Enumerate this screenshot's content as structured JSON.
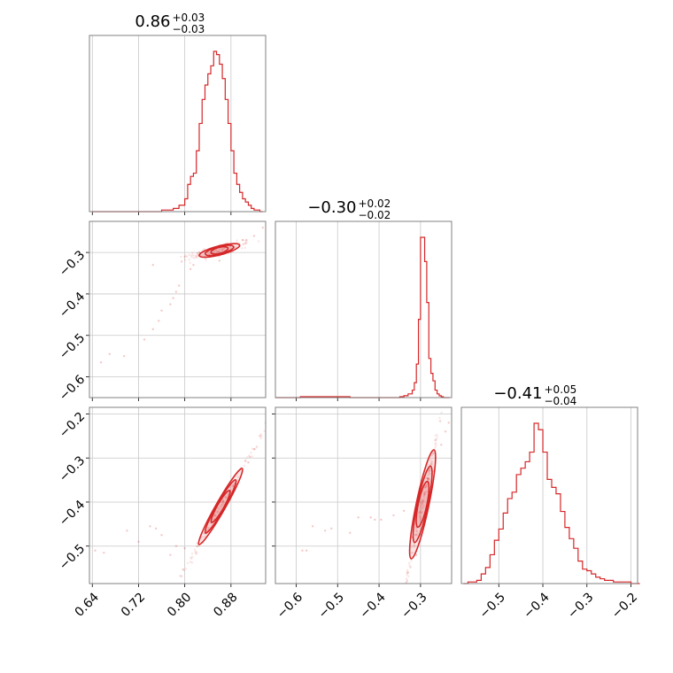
{
  "chart_data": {
    "type": "corner",
    "color": "#d62728",
    "grid": true,
    "parameters": [
      {
        "range": [
          0.635,
          0.94
        ],
        "ticks": [
          0.64,
          0.72,
          0.8,
          0.88
        ],
        "tick_labels": [
          "0.64",
          "0.72",
          "0.80",
          "0.88"
        ],
        "title": {
          "median": "0.86",
          "plus": "+0.03",
          "minus": "−0.03"
        }
      },
      {
        "range": [
          -0.65,
          -0.225
        ],
        "ticks": [
          -0.6,
          -0.5,
          -0.4,
          -0.3
        ],
        "tick_labels": [
          "−0.6",
          "−0.5",
          "−0.4",
          "−0.3"
        ],
        "title": {
          "median": "−0.30",
          "plus": "+0.02",
          "minus": "−0.02"
        }
      },
      {
        "range": [
          -0.585,
          -0.185
        ],
        "ticks": [
          -0.5,
          -0.4,
          -0.3,
          -0.2
        ],
        "tick_labels": [
          "−0.5",
          "−0.4",
          "−0.3",
          "−0.2"
        ],
        "title": {
          "median": "−0.41",
          "plus": "+0.05",
          "minus": "−0.04"
        }
      }
    ],
    "histograms": [
      {
        "parameter": 0,
        "x": [
          0.64,
          0.65,
          0.66,
          0.67,
          0.68,
          0.69,
          0.7,
          0.71,
          0.72,
          0.73,
          0.74,
          0.75,
          0.76,
          0.77,
          0.78,
          0.79,
          0.8,
          0.805,
          0.81,
          0.815,
          0.82,
          0.825,
          0.83,
          0.835,
          0.84,
          0.845,
          0.85,
          0.855,
          0.86,
          0.865,
          0.87,
          0.875,
          0.88,
          0.885,
          0.89,
          0.895,
          0.9,
          0.905,
          0.91,
          0.915,
          0.92,
          0.925,
          0.93
        ],
        "density": [
          0,
          0,
          0,
          0,
          0,
          0,
          0,
          0,
          0,
          0,
          0,
          0,
          0.01,
          0.01,
          0.02,
          0.04,
          0.08,
          0.17,
          0.22,
          0.24,
          0.38,
          0.55,
          0.7,
          0.79,
          0.86,
          0.91,
          1.0,
          0.98,
          0.92,
          0.83,
          0.7,
          0.55,
          0.38,
          0.24,
          0.17,
          0.12,
          0.08,
          0.06,
          0.04,
          0.02,
          0.01,
          0.01,
          0
        ]
      },
      {
        "parameter": 1,
        "x": [
          -0.65,
          -0.62,
          -0.59,
          -0.56,
          -0.53,
          -0.5,
          -0.47,
          -0.44,
          -0.41,
          -0.38,
          -0.35,
          -0.34,
          -0.33,
          -0.32,
          -0.315,
          -0.31,
          -0.305,
          -0.3,
          -0.295,
          -0.29,
          -0.285,
          -0.28,
          -0.275,
          -0.27,
          -0.265,
          -0.26,
          -0.255,
          -0.25,
          -0.245,
          -0.24,
          -0.235
        ],
        "density": [
          0,
          0,
          0.005,
          0.005,
          0.005,
          0.005,
          0,
          0,
          0,
          0,
          0.005,
          0.01,
          0.02,
          0.04,
          0.08,
          0.18,
          0.42,
          0.86,
          0.86,
          0.73,
          0.51,
          0.21,
          0.13,
          0.09,
          0.04,
          0.02,
          0.01,
          0.005,
          0,
          0,
          0
        ]
      },
      {
        "parameter": 2,
        "x": [
          -0.58,
          -0.57,
          -0.56,
          -0.55,
          -0.54,
          -0.53,
          -0.52,
          -0.51,
          -0.5,
          -0.49,
          -0.48,
          -0.47,
          -0.46,
          -0.45,
          -0.44,
          -0.43,
          -0.42,
          -0.41,
          -0.4,
          -0.39,
          -0.38,
          -0.37,
          -0.36,
          -0.35,
          -0.34,
          -0.33,
          -0.32,
          -0.31,
          -0.3,
          -0.29,
          -0.28,
          -0.27,
          -0.26,
          -0.25,
          -0.24,
          -0.23,
          -0.22,
          -0.21,
          -0.2,
          -0.19
        ],
        "density": [
          0,
          0.01,
          0.01,
          0.02,
          0.06,
          0.1,
          0.18,
          0.27,
          0.34,
          0.44,
          0.53,
          0.57,
          0.68,
          0.72,
          0.76,
          0.82,
          1.0,
          0.96,
          0.82,
          0.65,
          0.6,
          0.56,
          0.45,
          0.35,
          0.28,
          0.22,
          0.14,
          0.09,
          0.08,
          0.06,
          0.04,
          0.03,
          0.02,
          0.02,
          0.01,
          0.01,
          0.01,
          0.01,
          0,
          0
        ]
      }
    ],
    "scatter": [
      {
        "x_param": 0,
        "y_param": 1,
        "points": [
          [
            0.655,
            -0.565
          ],
          [
            0.67,
            -0.545
          ],
          [
            0.695,
            -0.55
          ],
          [
            0.73,
            -0.51
          ],
          [
            0.745,
            -0.485
          ],
          [
            0.755,
            -0.465
          ],
          [
            0.76,
            -0.44
          ],
          [
            0.775,
            -0.425
          ],
          [
            0.78,
            -0.41
          ],
          [
            0.785,
            -0.395
          ],
          [
            0.79,
            -0.38
          ],
          [
            0.745,
            -0.33
          ],
          [
            0.81,
            -0.34
          ],
          [
            0.8,
            -0.31
          ],
          [
            0.815,
            -0.33
          ],
          [
            0.86,
            -0.32
          ],
          [
            0.9,
            -0.27
          ],
          [
            0.92,
            -0.26
          ],
          [
            0.935,
            -0.24
          ]
        ],
        "contour_center": [
          0.86,
          -0.295
        ],
        "contour_slope": 0.36,
        "contour_spread": [
          0.07,
          0.006
        ]
      },
      {
        "x_param": 0,
        "y_param": 2,
        "points": [
          [
            0.645,
            -0.51
          ],
          [
            0.66,
            -0.515
          ],
          [
            0.7,
            -0.465
          ],
          [
            0.72,
            -0.49
          ],
          [
            0.74,
            -0.455
          ],
          [
            0.75,
            -0.46
          ],
          [
            0.76,
            -0.475
          ],
          [
            0.775,
            -0.52
          ],
          [
            0.785,
            -0.5
          ],
          [
            0.8,
            -0.505
          ],
          [
            0.91,
            -0.31
          ],
          [
            0.92,
            -0.28
          ],
          [
            0.93,
            -0.25
          ],
          [
            0.94,
            -0.22
          ]
        ],
        "contour_center": [
          0.862,
          -0.41
        ],
        "contour_slope": 2.3,
        "contour_spread": [
          0.075,
          0.006
        ]
      },
      {
        "x_param": 1,
        "y_param": 2,
        "points": [
          [
            -0.585,
            -0.51
          ],
          [
            -0.575,
            -0.51
          ],
          [
            -0.56,
            -0.455
          ],
          [
            -0.53,
            -0.465
          ],
          [
            -0.515,
            -0.46
          ],
          [
            -0.47,
            -0.47
          ],
          [
            -0.45,
            -0.435
          ],
          [
            -0.42,
            -0.435
          ],
          [
            -0.41,
            -0.44
          ],
          [
            -0.395,
            -0.44
          ],
          [
            -0.365,
            -0.43
          ],
          [
            -0.34,
            -0.42
          ],
          [
            -0.32,
            -0.48
          ],
          [
            -0.31,
            -0.52
          ],
          [
            -0.27,
            -0.33
          ],
          [
            -0.25,
            -0.27
          ],
          [
            -0.24,
            -0.24
          ],
          [
            -0.232,
            -0.22
          ]
        ],
        "contour_center": [
          -0.295,
          -0.405
        ],
        "contour_slope": 4.5,
        "contour_spread": [
          0.055,
          0.008
        ]
      }
    ]
  }
}
